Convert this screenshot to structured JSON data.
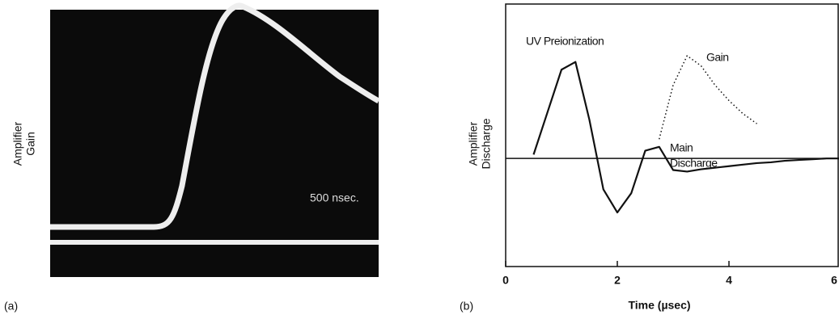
{
  "chart_data": [
    {
      "type": "photo",
      "ylabel": [
        "Amplifier",
        "Gain"
      ],
      "annotation": "500 nsec.",
      "panel_label": "(a)"
    },
    {
      "type": "line",
      "ylabel": [
        "Amplifier",
        "Discharge"
      ],
      "xlabel": "Time (µsec)",
      "panel_label": "(b)",
      "xlim": [
        0,
        6
      ],
      "xticks": [
        0,
        2,
        4,
        6
      ],
      "ylim": [
        -1.4,
        2
      ],
      "annotations": [
        "UV Preionization",
        "Gain",
        "Main",
        "Discharge"
      ],
      "x": [
        0,
        0.25,
        0.5,
        0.75,
        1,
        1.25,
        1.5,
        1.75,
        2,
        2.25,
        2.5,
        2.75,
        3,
        3.25,
        3.5,
        3.75,
        4,
        4.25,
        4.5,
        4.75,
        5,
        5.25,
        5.5,
        5.75,
        6
      ],
      "series": [
        {
          "color": "#111111",
          "style": "solid",
          "values": [
            null,
            null,
            0.05,
            0.6,
            1.15,
            1.25,
            0.5,
            -0.4,
            -0.7,
            -0.45,
            0.1,
            0.15,
            -0.15,
            -0.17,
            -0.14,
            -0.12,
            -0.1,
            -0.08,
            -0.06,
            -0.05,
            -0.03,
            -0.02,
            -0.01,
            0,
            0
          ]
        },
        {
          "color": "#111111",
          "style": "dotted",
          "values": [
            null,
            null,
            null,
            null,
            null,
            null,
            null,
            null,
            null,
            null,
            null,
            0.25,
            0.95,
            1.33,
            1.2,
            0.95,
            0.75,
            0.58,
            0.45,
            null,
            null,
            null,
            null,
            null,
            null
          ]
        }
      ]
    }
  ]
}
